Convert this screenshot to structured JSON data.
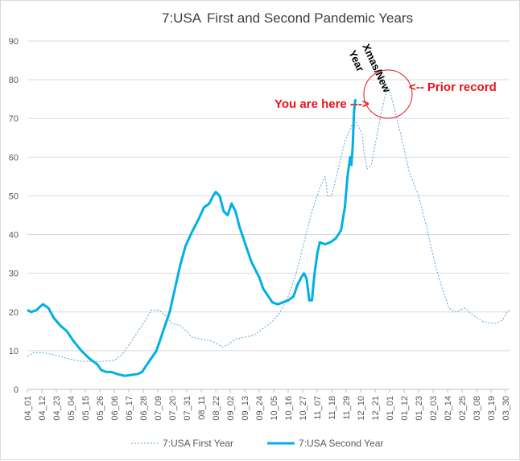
{
  "chart_data": {
    "type": "line",
    "title_left": "7:USA",
    "title_right": "First and Second Pandemic Years",
    "xlabel": "",
    "ylabel": "",
    "ylim": [
      0,
      90
    ],
    "yticks": [
      0,
      10,
      20,
      30,
      40,
      50,
      60,
      70,
      80,
      90
    ],
    "grid": "horizontal",
    "legend_position": "bottom",
    "x_tick_labels": [
      "04_01",
      "04_12",
      "04_23",
      "05_04",
      "05_15",
      "05_26",
      "06_06",
      "06_17",
      "06_28",
      "07_09",
      "07_20",
      "07_31",
      "08_11",
      "08_22",
      "09_02",
      "09_13",
      "09_24",
      "10_05",
      "10_16",
      "10_27",
      "11_07",
      "11_18",
      "11_29",
      "12_10",
      "12_21",
      "01_01",
      "01_12",
      "01_23",
      "02_03",
      "02_14",
      "02_25",
      "03_08",
      "03_19",
      "03_30"
    ],
    "series": [
      {
        "name": "7:USA First Year",
        "style": "dotted",
        "color": "#5ba3d6",
        "points": [
          [
            0,
            8.5
          ],
          [
            5,
            9.5
          ],
          [
            11,
            9.5
          ],
          [
            20,
            9
          ],
          [
            30,
            8
          ],
          [
            40,
            7.3
          ],
          [
            55,
            7.2
          ],
          [
            66,
            7.5
          ],
          [
            72,
            9
          ],
          [
            78,
            12
          ],
          [
            84,
            15
          ],
          [
            90,
            18
          ],
          [
            94,
            20.5
          ],
          [
            100,
            20.5
          ],
          [
            105,
            19
          ],
          [
            110,
            17
          ],
          [
            116,
            16.5
          ],
          [
            121,
            15
          ],
          [
            125,
            13.5
          ],
          [
            132,
            13
          ],
          [
            140,
            12.5
          ],
          [
            148,
            11
          ],
          [
            152,
            11.5
          ],
          [
            158,
            13
          ],
          [
            165,
            13.5
          ],
          [
            172,
            14
          ],
          [
            178,
            15.5
          ],
          [
            186,
            17.5
          ],
          [
            192,
            20
          ],
          [
            198,
            24
          ],
          [
            204,
            30
          ],
          [
            210,
            38
          ],
          [
            216,
            46
          ],
          [
            222,
            52
          ],
          [
            226,
            55
          ],
          [
            228,
            50
          ],
          [
            231,
            50
          ],
          [
            236,
            57
          ],
          [
            241,
            64
          ],
          [
            246,
            68
          ],
          [
            250,
            69
          ],
          [
            254,
            66
          ],
          [
            256,
            60
          ],
          [
            258,
            57
          ],
          [
            261,
            58
          ],
          [
            265,
            65
          ],
          [
            269,
            72
          ],
          [
            272,
            76.5
          ],
          [
            274,
            78
          ],
          [
            276,
            76
          ],
          [
            279,
            72
          ],
          [
            284,
            65
          ],
          [
            290,
            56
          ],
          [
            297,
            50
          ],
          [
            303,
            42
          ],
          [
            309,
            33
          ],
          [
            315,
            26
          ],
          [
            320,
            21
          ],
          [
            325,
            20
          ],
          [
            332,
            21
          ],
          [
            339,
            19
          ],
          [
            346,
            17.5
          ],
          [
            355,
            17
          ],
          [
            361,
            18
          ],
          [
            364,
            20
          ],
          [
            366,
            20.5
          ]
        ]
      },
      {
        "name": "7:USA Second Year",
        "style": "solid",
        "color": "#00b0e6",
        "points": [
          [
            0,
            20.5
          ],
          [
            3,
            20
          ],
          [
            7,
            20.5
          ],
          [
            10,
            21.5
          ],
          [
            12,
            22
          ],
          [
            16,
            21
          ],
          [
            20,
            18.5
          ],
          [
            25,
            16.5
          ],
          [
            30,
            15
          ],
          [
            35,
            12.5
          ],
          [
            41,
            10
          ],
          [
            47,
            8
          ],
          [
            53,
            6.5
          ],
          [
            56,
            5
          ],
          [
            60,
            4.5
          ],
          [
            64,
            4.5
          ],
          [
            68,
            4
          ],
          [
            74,
            3.5
          ],
          [
            80,
            3.8
          ],
          [
            84,
            4
          ],
          [
            87,
            4.5
          ],
          [
            90,
            6
          ],
          [
            94,
            8
          ],
          [
            98,
            10
          ],
          [
            101,
            13
          ],
          [
            104,
            16
          ],
          [
            108,
            20
          ],
          [
            112,
            26
          ],
          [
            116,
            32
          ],
          [
            120,
            37
          ],
          [
            124,
            40
          ],
          [
            127,
            42
          ],
          [
            130,
            44
          ],
          [
            134,
            47
          ],
          [
            138,
            48
          ],
          [
            141,
            50
          ],
          [
            143,
            51
          ],
          [
            146,
            50
          ],
          [
            149,
            46
          ],
          [
            152,
            45
          ],
          [
            155,
            48
          ],
          [
            158,
            46
          ],
          [
            161,
            42
          ],
          [
            164,
            39
          ],
          [
            167,
            36
          ],
          [
            170,
            33
          ],
          [
            173,
            31
          ],
          [
            176,
            29
          ],
          [
            179,
            26
          ],
          [
            182,
            24.5
          ],
          [
            186,
            22.5
          ],
          [
            190,
            22
          ],
          [
            194,
            22.5
          ],
          [
            198,
            23
          ],
          [
            202,
            24
          ],
          [
            205,
            27
          ],
          [
            208,
            29
          ],
          [
            210,
            30
          ],
          [
            212,
            28.5
          ],
          [
            214,
            23
          ],
          [
            216,
            23
          ],
          [
            218,
            30
          ],
          [
            220,
            35
          ],
          [
            222,
            38
          ],
          [
            226,
            37.5
          ],
          [
            230,
            38
          ],
          [
            234,
            39
          ],
          [
            238,
            41
          ],
          [
            241,
            47
          ],
          [
            243,
            55
          ],
          [
            245,
            60
          ],
          [
            246,
            58
          ],
          [
            247,
            63
          ],
          [
            248,
            72
          ],
          [
            249,
            75
          ]
        ]
      }
    ],
    "legend": [
      "7:USA First Year",
      "7:USA Second Year"
    ]
  },
  "annotations": {
    "you_are_here": "You are here --->",
    "prior_record": "<-- Prior record",
    "xmas_new": "Xmas/New",
    "year": "Year"
  },
  "colors": {
    "first_year": "#5ba3d6",
    "second_year": "#00b0e6",
    "annotation": "#e8141b",
    "grid": "#d9d9d9"
  }
}
